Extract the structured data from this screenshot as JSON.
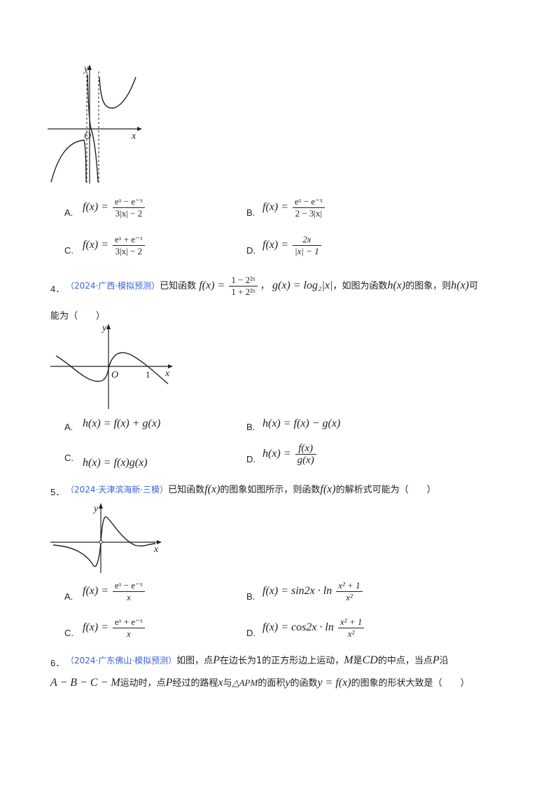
{
  "q3": {
    "graph_labels": {
      "y": "y",
      "x": "x",
      "origin": "O"
    },
    "options": [
      {
        "letter": "A.",
        "lhs": "f(x) =",
        "num": "eˣ − e⁻ˣ",
        "den": "3|x| − 2"
      },
      {
        "letter": "B.",
        "lhs": "f(x) =",
        "num": "eˣ − e⁻ˣ",
        "den": "2 − 3|x|"
      },
      {
        "letter": "C.",
        "lhs": "f(x) =",
        "num": "eˣ + e⁻ˣ",
        "den": "3|x| − 2"
      },
      {
        "letter": "D.",
        "lhs": "f(x) =",
        "num": "2x",
        "den": "|x| − 1"
      }
    ]
  },
  "q4": {
    "number": "4．",
    "source": "（2024·广西·模拟预测）",
    "text_1": "已知函数",
    "f_def": "f(x) =",
    "f_num": "1 − 2²ˣ",
    "f_den": "1 + 2²ˣ",
    "text_2": "，",
    "g_def": "g(x) = log₂|x|",
    "text_3": "，如图为函数",
    "h": "h(x)",
    "text_4": "的图象，则",
    "h2": "h(x)",
    "text_5": "可",
    "line2": "能为（　　）",
    "graph_labels": {
      "y": "y",
      "x": "x",
      "origin": "O",
      "one": "1"
    },
    "options": [
      {
        "letter": "A.",
        "expr": "h(x) = f(x) + g(x)"
      },
      {
        "letter": "B.",
        "expr": "h(x) = f(x) − g(x)"
      },
      {
        "letter": "C.",
        "expr": "h(x) = f(x)g(x)"
      },
      {
        "letter": "D.",
        "lhs": "h(x) =",
        "num": "f(x)",
        "den": "g(x)"
      }
    ]
  },
  "q5": {
    "number": "5．",
    "source": "（2024·天津滨海新·三模）",
    "text_1": "已知函数",
    "f": "f(x)",
    "text_2": "的图象如图所示，则函数",
    "f2": "f(x)",
    "text_3": "的解析式可能为（　　）",
    "graph_labels": {
      "y": "y",
      "x": "x"
    },
    "options": [
      {
        "letter": "A.",
        "lhs": "f(x) =",
        "num": "eˣ − e⁻ˣ",
        "den": "x"
      },
      {
        "letter": "B.",
        "lhs": "f(x) = sin2x · ln",
        "num": "x² + 1",
        "den": "x²"
      },
      {
        "letter": "C.",
        "lhs": "f(x) =",
        "num": "eˣ + e⁻ˣ",
        "den": "x"
      },
      {
        "letter": "D.",
        "lhs": "f(x) = cos2x · ln",
        "num": "x² + 1",
        "den": "x²"
      }
    ]
  },
  "q6": {
    "number": "6．",
    "source": "（2024·广东佛山·模拟预测）",
    "text_1": "如图，点",
    "p": "P",
    "text_2": "在边长为",
    "one": "1",
    "text_3": "的正方形边上运动，",
    "m": "M",
    "text_4": "是",
    "cd": "CD",
    "text_5": "的中点，当点",
    "p2": "P",
    "text_6": "沿",
    "path": "A − B − C − M",
    "text_7": "运动时，点",
    "p3": "P",
    "text_8": "经过的路程",
    "xv": "x",
    "text_9": "与",
    "tri": "△APM",
    "text_10": "的面积",
    "yv": "y",
    "text_11": "的函数",
    "func": "y = f(x)",
    "text_12": "的图象的形状大致是（　　）"
  }
}
